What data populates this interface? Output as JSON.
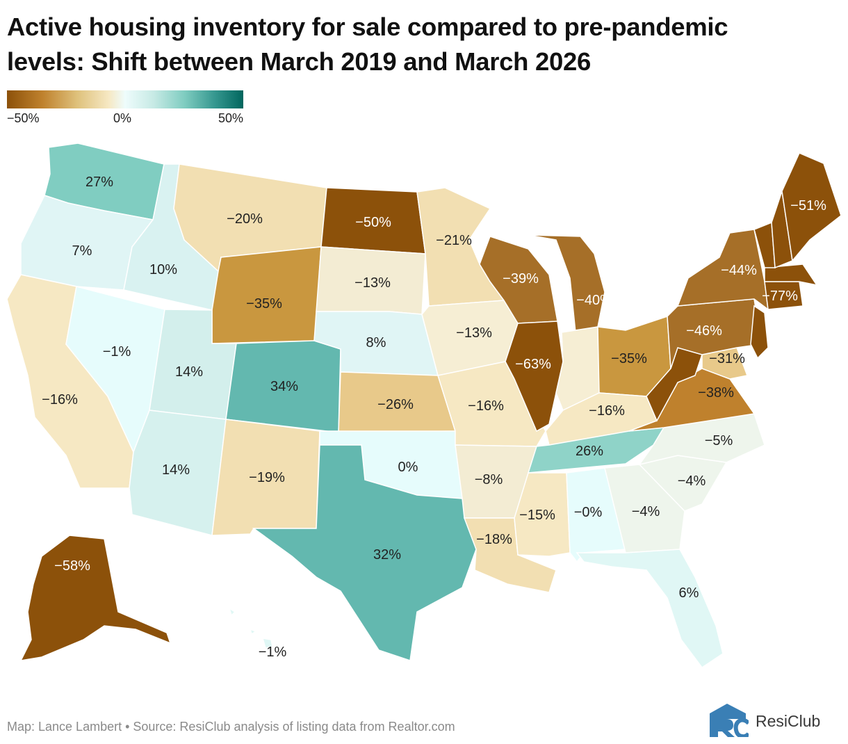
{
  "title_line1": "Active housing inventory for sale compared to pre-pandemic",
  "title_line2": "levels: Shift between March 2019 and March 2026",
  "legend": {
    "min_label": "−50%",
    "mid_label": "0%",
    "max_label": "50%"
  },
  "footer": "Map: Lance Lambert • Source: ResiClub analysis of listing data from Realtor.com",
  "brand": "ResiClub",
  "colors": {
    "strong_brown": "#8c510a",
    "brown": "#a66f28",
    "tan": "#c9973f",
    "light_tan": "#e8c98a",
    "beige": "#f2dfb2",
    "cream": "#f6e8c3",
    "light_cream": "#f3ecd3",
    "neutral": "#e8f5ef",
    "ice": "#e6fafa",
    "light_teal": "#c7eae5",
    "teal": "#80cdc1",
    "dark_teal": "#63b8af"
  },
  "states": [
    {
      "id": "WA",
      "label": "27%"
    },
    {
      "id": "OR",
      "label": "7%"
    },
    {
      "id": "CA",
      "label": "−16%"
    },
    {
      "id": "ID",
      "label": "10%"
    },
    {
      "id": "NV",
      "label": "−1%"
    },
    {
      "id": "MT",
      "label": "−20%"
    },
    {
      "id": "WY",
      "label": "−35%"
    },
    {
      "id": "UT",
      "label": "14%"
    },
    {
      "id": "AZ",
      "label": "14%"
    },
    {
      "id": "CO",
      "label": "34%"
    },
    {
      "id": "NM",
      "label": "−19%"
    },
    {
      "id": "ND",
      "label": "−50%"
    },
    {
      "id": "SD",
      "label": "−13%"
    },
    {
      "id": "NE",
      "label": "8%"
    },
    {
      "id": "KS",
      "label": "−26%"
    },
    {
      "id": "OK",
      "label": "0%"
    },
    {
      "id": "TX",
      "label": "32%"
    },
    {
      "id": "MN",
      "label": "−21%"
    },
    {
      "id": "IA",
      "label": "−13%"
    },
    {
      "id": "MO",
      "label": "−16%"
    },
    {
      "id": "AR",
      "label": "−8%"
    },
    {
      "id": "LA",
      "label": "−18%"
    },
    {
      "id": "WI",
      "label": "−39%"
    },
    {
      "id": "IL",
      "label": "−63%"
    },
    {
      "id": "MI",
      "label": "−40%"
    },
    {
      "id": "IN",
      "label": ""
    },
    {
      "id": "OH",
      "label": "−35%"
    },
    {
      "id": "KY",
      "label": "−16%"
    },
    {
      "id": "TN",
      "label": "26%"
    },
    {
      "id": "MS",
      "label": "−15%"
    },
    {
      "id": "AL",
      "label": "−0%"
    },
    {
      "id": "GA",
      "label": "−4%"
    },
    {
      "id": "FL",
      "label": "6%"
    },
    {
      "id": "SC",
      "label": "−4%"
    },
    {
      "id": "NC",
      "label": "−5%"
    },
    {
      "id": "VA",
      "label": "−38%"
    },
    {
      "id": "WV",
      "label": ""
    },
    {
      "id": "MD",
      "label": "−31%"
    },
    {
      "id": "PA",
      "label": "−46%"
    },
    {
      "id": "NJ",
      "label": ""
    },
    {
      "id": "NY",
      "label": "−44%"
    },
    {
      "id": "CT",
      "label": "−77%"
    },
    {
      "id": "MA",
      "label": ""
    },
    {
      "id": "VT",
      "label": ""
    },
    {
      "id": "NH",
      "label": ""
    },
    {
      "id": "ME",
      "label": "−51%"
    },
    {
      "id": "AK",
      "label": "−58%"
    },
    {
      "id": "HI",
      "label": "−1%"
    }
  ]
}
